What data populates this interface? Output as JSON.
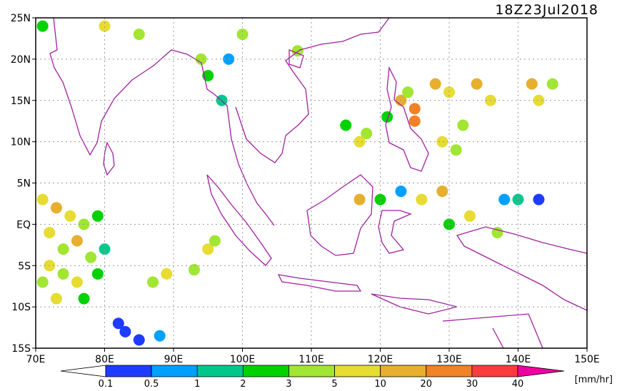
{
  "chart_data": {
    "type": "map",
    "title": "18Z23Jul2018",
    "xlim": [
      70,
      150
    ],
    "xticks": [
      {
        "value": 70,
        "label": "70E"
      },
      {
        "value": 80,
        "label": "80E"
      },
      {
        "value": 90,
        "label": "90E"
      },
      {
        "value": 100,
        "label": "100E"
      },
      {
        "value": 110,
        "label": "110E"
      },
      {
        "value": 120,
        "label": "120E"
      },
      {
        "value": 130,
        "label": "130E"
      },
      {
        "value": 140,
        "label": "140E"
      },
      {
        "value": 150,
        "label": "150E"
      }
    ],
    "ylim": [
      -15,
      25
    ],
    "yticks": [
      {
        "value": -15,
        "label": "15S"
      },
      {
        "value": -10,
        "label": "10S"
      },
      {
        "value": -5,
        "label": "5S"
      },
      {
        "value": 0,
        "label": "EQ"
      },
      {
        "value": 5,
        "label": "5N"
      },
      {
        "value": 10,
        "label": "10N"
      },
      {
        "value": 15,
        "label": "15N"
      },
      {
        "value": 20,
        "label": "20N"
      },
      {
        "value": 25,
        "label": "25N"
      }
    ],
    "grid": true,
    "colorbar": {
      "levels": [
        0.1,
        0.5,
        1,
        2,
        3,
        5,
        10,
        20,
        30,
        40
      ],
      "colors": [
        "#ffffff",
        "#1e3cff",
        "#00a0ff",
        "#00c88c",
        "#00d200",
        "#a0e632",
        "#e6dc32",
        "#e6af2d",
        "#f08228",
        "#fa3c3c",
        "#f000a0"
      ],
      "unit": "[mm/hr]"
    },
    "rain": {
      "lon": [
        71,
        73,
        75,
        77,
        72,
        74,
        76,
        78,
        72,
        74,
        76,
        79,
        71,
        73,
        77,
        80,
        79,
        83,
        85,
        88,
        82,
        87,
        89,
        93,
        95,
        96,
        125,
        125,
        123,
        124,
        121,
        118,
        117,
        115,
        128,
        130,
        134,
        136,
        142,
        143,
        145,
        129,
        131,
        132,
        97,
        95,
        98,
        94,
        108,
        117,
        120,
        123,
        126,
        129,
        133,
        138,
        140,
        143,
        130,
        137,
        71,
        80,
        85,
        100
      ],
      "lat": [
        3,
        2,
        1,
        0,
        -1,
        -3,
        -2,
        -4,
        -5,
        -6,
        -7,
        -6,
        -7,
        -9,
        -9,
        -3,
        1,
        -13,
        -14,
        -13.5,
        -12,
        -7,
        -6,
        -5.5,
        -3,
        -2,
        14,
        12.5,
        15,
        16,
        13,
        11,
        10,
        12,
        17,
        16,
        17,
        15,
        17,
        15,
        17,
        10,
        9,
        12,
        15,
        18,
        20,
        20,
        21,
        3,
        3,
        4,
        3,
        4,
        1,
        3,
        3,
        3,
        0,
        -1,
        24,
        24,
        23,
        23
      ],
      "value": [
        5,
        10,
        5,
        3,
        5,
        3,
        10,
        3,
        5,
        3,
        5,
        2,
        3,
        5,
        2,
        1,
        2,
        0.3,
        0.3,
        0.5,
        0.4,
        3,
        5,
        3,
        5,
        3,
        20,
        20,
        10,
        3,
        2,
        3,
        5,
        2,
        10,
        5,
        10,
        5,
        10,
        5,
        3,
        5,
        3,
        3,
        1,
        2,
        0.5,
        3,
        3,
        10,
        2,
        0.5,
        5,
        10,
        5,
        0.5,
        1,
        0.3,
        2,
        3,
        2,
        5,
        3,
        3
      ]
    }
  }
}
